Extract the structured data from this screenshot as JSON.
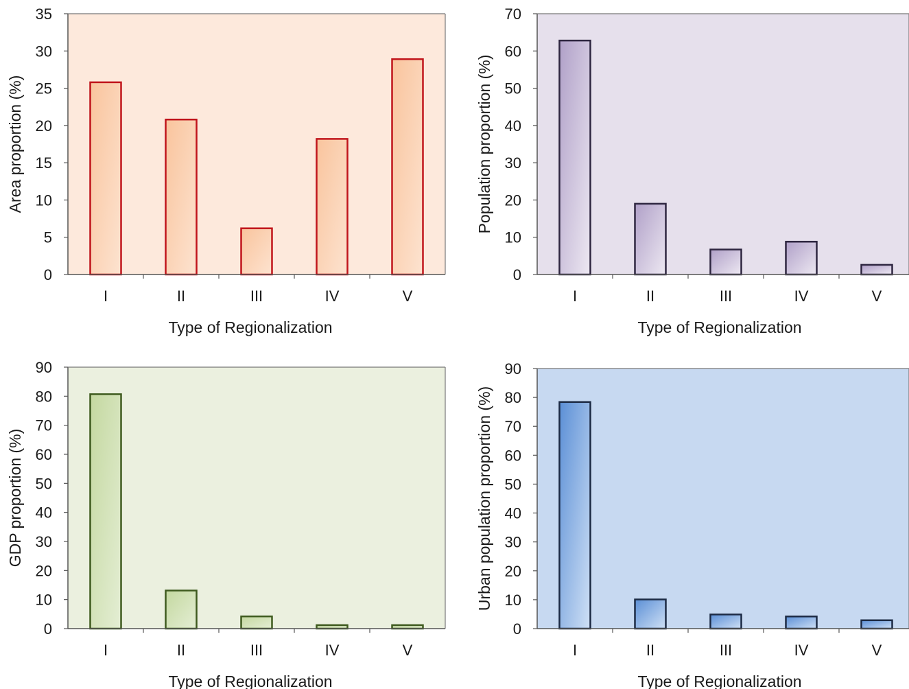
{
  "chart_data": [
    {
      "type": "bar",
      "categories": [
        "I",
        "II",
        "III",
        "IV",
        "V"
      ],
      "values": [
        25.8,
        20.8,
        6.2,
        18.2,
        28.9
      ],
      "xlabel": "Type of Regionalization",
      "ylabel": "Area proportion  (%)",
      "ylim": [
        0,
        35
      ],
      "yticks": [
        0,
        5,
        10,
        15,
        20,
        25,
        30,
        35
      ],
      "colors": {
        "background": "#fde9dc",
        "bar_fill": "#f9c49d",
        "bar_fill_light": "#fde3d0",
        "bar_stroke": "#c0141b"
      }
    },
    {
      "type": "bar",
      "categories": [
        "I",
        "II",
        "III",
        "IV",
        "V"
      ],
      "values": [
        62.8,
        19.0,
        6.7,
        8.8,
        2.6
      ],
      "xlabel": "Type of Regionalization",
      "ylabel": "Population proportion  (%)",
      "ylim": [
        0,
        70
      ],
      "yticks": [
        0,
        10,
        20,
        30,
        40,
        50,
        60,
        70
      ],
      "colors": {
        "background": "#e6e0ec",
        "bar_fill": "#b0a0c8",
        "bar_fill_light": "#ede8f2",
        "bar_stroke": "#2e2640"
      }
    },
    {
      "type": "bar",
      "categories": [
        "I",
        "II",
        "III",
        "IV",
        "V"
      ],
      "values": [
        80.7,
        13.1,
        4.2,
        1.2,
        1.2
      ],
      "xlabel": "Type of Regionalization",
      "ylabel": "GDP proportion  (%)",
      "ylim": [
        0,
        90
      ],
      "yticks": [
        0,
        10,
        20,
        30,
        40,
        50,
        60,
        70,
        80,
        90
      ],
      "colors": {
        "background": "#ebf0df",
        "bar_fill": "#c4d8a0",
        "bar_fill_light": "#e4eed4",
        "bar_stroke": "#3e5a1e"
      }
    },
    {
      "type": "bar",
      "categories": [
        "I",
        "II",
        "III",
        "IV",
        "V"
      ],
      "values": [
        78.4,
        10.1,
        4.9,
        4.2,
        2.9
      ],
      "xlabel": "Type of Regionalization",
      "ylabel": "Urban population proportion  (%)",
      "ylim": [
        0,
        90
      ],
      "yticks": [
        0,
        10,
        20,
        30,
        40,
        50,
        60,
        70,
        80,
        90
      ],
      "colors": {
        "background": "#c7d9f1",
        "bar_fill": "#5b8fd6",
        "bar_fill_light": "#cfe0f5",
        "bar_stroke": "#1c2a44"
      }
    }
  ]
}
